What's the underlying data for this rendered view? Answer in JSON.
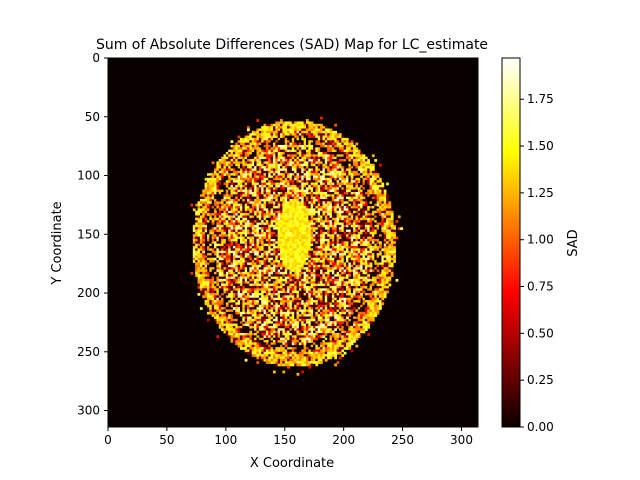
{
  "chart_data": {
    "type": "heatmap",
    "title": "Sum of Absolute Differences (SAD) Map for LC_estimate",
    "xlabel": "X Coordinate",
    "ylabel": "Y Coordinate",
    "xlim": [
      0,
      314
    ],
    "ylim": [
      314,
      0
    ],
    "x_ticks": [
      0,
      50,
      100,
      150,
      200,
      250,
      300
    ],
    "y_ticks": [
      0,
      50,
      100,
      150,
      200,
      250,
      300
    ],
    "colormap": "hot",
    "colorbar": {
      "label": "SAD",
      "range": [
        0,
        1.97
      ],
      "ticks": [
        "0.00",
        "0.25",
        "0.50",
        "0.75",
        "1.00",
        "1.25",
        "1.50",
        "1.75"
      ]
    },
    "background_value": 0,
    "regions": [
      {
        "name": "skull-outer-ring",
        "center": [
          157,
          157
        ],
        "radii": [
          82,
          100
        ],
        "thickness": 4,
        "value": 1.35
      },
      {
        "name": "skull-inner-ring",
        "center": [
          157,
          158
        ],
        "radii": [
          72,
          90
        ],
        "thickness": 3,
        "value": 1.2
      },
      {
        "name": "brain-tissue",
        "center": [
          157,
          157
        ],
        "radii": [
          68,
          86
        ],
        "value_range": [
          0.05,
          1.9
        ]
      },
      {
        "name": "ventricles",
        "center": [
          157,
          150
        ],
        "radii": [
          14,
          32
        ],
        "value": 1.45
      }
    ]
  }
}
